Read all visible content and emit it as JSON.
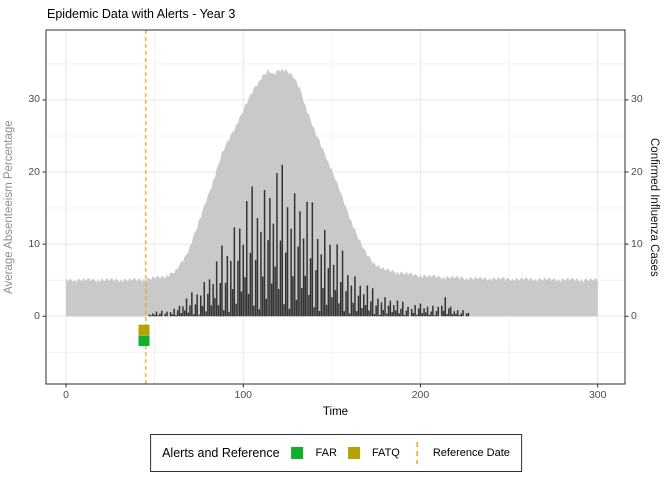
{
  "title": "Epidemic Data with Alerts - Year 3",
  "theme": {
    "background": "#ffffff",
    "panel_border": "#2e2e2e",
    "grid_major": "#e7e7e7",
    "grid_minor": "#f2f2f2",
    "tick_color": "#2e2e2e",
    "tick_label_color": "#4d4d4d",
    "left_axis_title_color": "#8e8e8e",
    "right_axis_title_color": "#161616",
    "title_color": "#000000",
    "legend_border": "#2e2e2e"
  },
  "chart_data": {
    "type": "area+bar",
    "title": "Epidemic Data with Alerts - Year 3",
    "xlabel": "Time",
    "ylabel_left": "Average Absenteeism Percentage",
    "ylabel_right": "Confirmed Influenza Cases",
    "grid": "on",
    "x_step": 1,
    "axes": {
      "x_ticks": [
        0,
        100,
        200,
        300
      ],
      "x_minor": [
        50,
        150,
        250
      ],
      "y_ticks": [
        0,
        10,
        20,
        30
      ],
      "y_minor": [
        -5,
        5,
        15,
        25,
        35
      ],
      "x_domain": [
        -11.3,
        315.4
      ],
      "y_domain": [
        -9.4,
        39.7
      ]
    },
    "series": [
      {
        "name": "Average Absenteeism Percentage",
        "type": "area",
        "color": "#c9c9c9",
        "representation": "anchor points linearly interpolated at x step 1 with additive noise cycle",
        "anchors_x": [
          0,
          40,
          48,
          55,
          62,
          68,
          75,
          82,
          88,
          94,
          100,
          106,
          110,
          114,
          117,
          120,
          122,
          125,
          128,
          132,
          136,
          140,
          144,
          148,
          152,
          156,
          160,
          164,
          168,
          172,
          176,
          180,
          188,
          196,
          210,
          230,
          260,
          300
        ],
        "anchors_y": [
          5,
          5,
          5.2,
          5.4,
          6.2,
          8.5,
          13,
          18,
          22.5,
          25.5,
          28.5,
          31.5,
          33,
          34,
          33.4,
          34.1,
          34.3,
          33.9,
          33.2,
          31.5,
          28.5,
          25.8,
          23.6,
          21.4,
          19,
          16.3,
          13.8,
          11.3,
          9.2,
          7.8,
          6.9,
          6.4,
          6,
          5.7,
          5.4,
          5.2,
          5.1,
          5
        ],
        "noise_cycle": [
          0.3,
          -0.18,
          0.22,
          0.05,
          -0.28,
          0.12,
          -0.32,
          0.25,
          0.02,
          -0.15,
          0.35,
          -0.08,
          0.15
        ]
      },
      {
        "name": "Confirmed Influenza Cases",
        "type": "bar",
        "color": "#333333",
        "representation": "envelope anchor points linearly interpolated at x step 1, multiplied by noise factor cycle",
        "anchors_x": [
          0,
          46,
          48,
          55,
          60,
          65,
          70,
          75,
          80,
          85,
          90,
          95,
          100,
          105,
          110,
          115,
          120,
          125,
          130,
          135,
          140,
          145,
          150,
          155,
          160,
          165,
          170,
          175,
          180,
          185,
          190,
          196,
          200,
          205,
          210,
          214,
          218,
          222,
          226,
          228,
          229,
          300
        ],
        "anchors_y": [
          0,
          0,
          0.6,
          0.8,
          1,
          2,
          3,
          4.5,
          6,
          8,
          11,
          14,
          16,
          18,
          19.5,
          20.5,
          21,
          21,
          19,
          17,
          15.5,
          14,
          12,
          9.5,
          7.5,
          5.5,
          4.5,
          3.5,
          3,
          2.5,
          2,
          1.6,
          2.2,
          1.2,
          1.8,
          3,
          1.2,
          0.8,
          0.9,
          0.4,
          0,
          0
        ],
        "noise_factors": [
          0.95,
          0.18,
          0.5,
          1.0,
          0.08,
          0.42,
          0.72,
          0.05,
          0.6,
          0.28,
          0.88,
          0.12,
          0.52,
          0.8,
          0.22,
          0.62,
          0.33
        ]
      }
    ],
    "alerts": [
      {
        "name": "FATQ",
        "x": 44,
        "y": -1.9,
        "color": "#b5a300",
        "shape": "square"
      },
      {
        "name": "FAR",
        "x": 44,
        "y": -3.4,
        "color": "#0fae2b",
        "shape": "square"
      }
    ],
    "reference_line": {
      "x": 45,
      "color": "#efa20c",
      "style": "dashed"
    },
    "legend": {
      "position": "bottom",
      "title": "Alerts and Reference",
      "items": [
        {
          "label": "FAR",
          "color": "#0fae2b",
          "type": "square"
        },
        {
          "label": "FATQ",
          "color": "#b5a300",
          "type": "square"
        },
        {
          "label": "Reference Date",
          "color": "#efa20c",
          "type": "dashed-line"
        }
      ]
    }
  }
}
